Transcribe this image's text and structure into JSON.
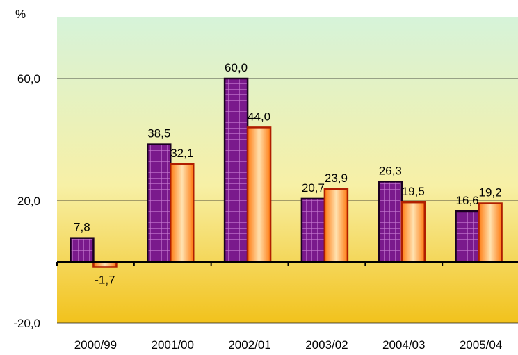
{
  "chart_data": {
    "type": "bar",
    "y_unit_label": "%",
    "categories": [
      "2000/99",
      "2001/00",
      "2002/01",
      "2003/02",
      "2004/03",
      "2005/04"
    ],
    "series": [
      {
        "values": [
          7.8,
          38.5,
          60.0,
          20.7,
          26.3,
          16.6
        ],
        "value_labels": [
          "7,8",
          "38,5",
          "60,0",
          "20,7",
          "26,3",
          "16,6"
        ],
        "color": "#7a1a8c",
        "pattern": "grid"
      },
      {
        "values": [
          -1.7,
          32.1,
          44.0,
          23.9,
          19.5,
          19.2
        ],
        "value_labels": [
          "-1,7",
          "32,1",
          "44,0",
          "23,9",
          "19,5",
          "19,2"
        ],
        "color": "#ff8a1a",
        "pattern": "gradient"
      }
    ],
    "yticks": [
      -20,
      20,
      60
    ],
    "ytick_labels": [
      "-20,0",
      "20,0",
      "60,0"
    ],
    "ylim": [
      -20,
      80
    ],
    "grid": true,
    "background": {
      "top": "#d6f3d9",
      "middle": "#f7f0a6",
      "bottom": "#f2c21c"
    }
  }
}
